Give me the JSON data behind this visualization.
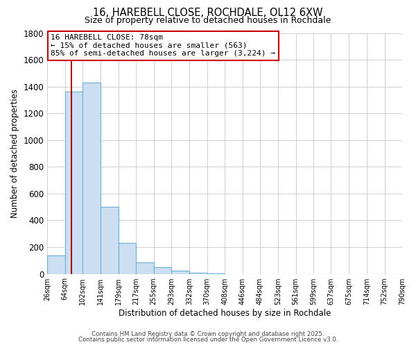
{
  "title_line1": "16, HAREBELL CLOSE, ROCHDALE, OL12 6XW",
  "title_line2": "Size of property relative to detached houses in Rochdale",
  "xlabel": "Distribution of detached houses by size in Rochdale",
  "ylabel": "Number of detached properties",
  "bar_values": [
    140,
    1360,
    1430,
    500,
    230,
    85,
    50,
    25,
    10,
    5,
    0,
    0,
    0,
    0,
    0,
    0,
    0,
    0,
    0,
    0
  ],
  "bar_edges": [
    26,
    64,
    102,
    141,
    179,
    217,
    255,
    293,
    332,
    370,
    408,
    446,
    484,
    523,
    561,
    599,
    637,
    675,
    714,
    752,
    790
  ],
  "tick_labels": [
    "26sqm",
    "64sqm",
    "102sqm",
    "141sqm",
    "179sqm",
    "217sqm",
    "255sqm",
    "293sqm",
    "332sqm",
    "370sqm",
    "408sqm",
    "446sqm",
    "484sqm",
    "523sqm",
    "561sqm",
    "599sqm",
    "637sqm",
    "675sqm",
    "714sqm",
    "752sqm",
    "790sqm"
  ],
  "bar_color": "#ccdff2",
  "bar_edge_color": "#6aaed6",
  "ylim": [
    0,
    1800
  ],
  "yticks": [
    0,
    200,
    400,
    600,
    800,
    1000,
    1200,
    1400,
    1600,
    1800
  ],
  "property_line_x": 78,
  "property_line_color": "#aa0000",
  "annotation_title": "16 HAREBELL CLOSE: 78sqm",
  "annotation_line1": "← 15% of detached houses are smaller (563)",
  "annotation_line2": "85% of semi-detached houses are larger (3,224) →",
  "footer_line1": "Contains HM Land Registry data © Crown copyright and database right 2025.",
  "footer_line2": "Contains public sector information licensed under the Open Government Licence v3.0.",
  "background_color": "#ffffff",
  "grid_color": "#c8c8c8"
}
